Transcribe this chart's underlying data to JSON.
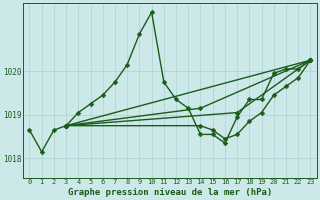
{
  "title": "Graphe pression niveau de la mer (hPa)",
  "bg_color": "#cce8e8",
  "grid_color": "#b0d4d4",
  "line_color": "#1a5c1a",
  "marker": "D",
  "markersize": 2.5,
  "linewidth": 1.0,
  "xlim": [
    -0.5,
    23.5
  ],
  "ylim": [
    1017.55,
    1021.55
  ],
  "yticks": [
    1018,
    1019,
    1020
  ],
  "xticks": [
    0,
    1,
    2,
    3,
    4,
    5,
    6,
    7,
    8,
    9,
    10,
    11,
    12,
    13,
    14,
    15,
    16,
    17,
    18,
    19,
    20,
    21,
    22,
    23
  ],
  "series": [
    {
      "x": [
        0,
        1,
        2,
        3,
        4,
        5,
        6,
        7,
        8,
        9,
        10,
        11,
        12,
        13,
        14,
        15,
        16,
        17,
        18,
        19,
        20,
        21,
        22,
        23
      ],
      "y": [
        1018.65,
        1018.15,
        1018.65,
        1018.75,
        1019.05,
        1019.25,
        1019.45,
        1019.75,
        1020.15,
        1020.85,
        1021.35,
        1019.75,
        1019.35,
        1019.15,
        1018.55,
        1018.55,
        1018.35,
        1018.95,
        1019.35,
        1019.35,
        1019.95,
        1020.05,
        1020.05,
        1020.25
      ]
    },
    {
      "x": [
        3,
        23
      ],
      "y": [
        1018.75,
        1020.25
      ]
    },
    {
      "x": [
        3,
        14,
        23
      ],
      "y": [
        1018.75,
        1019.15,
        1020.25
      ]
    },
    {
      "x": [
        3,
        17,
        23
      ],
      "y": [
        1018.75,
        1019.05,
        1020.25
      ]
    },
    {
      "x": [
        3,
        14,
        15,
        16,
        17,
        18,
        19,
        20,
        21,
        22,
        23
      ],
      "y": [
        1018.75,
        1018.75,
        1018.65,
        1018.45,
        1018.55,
        1018.85,
        1019.05,
        1019.45,
        1019.65,
        1019.85,
        1020.25
      ]
    }
  ]
}
